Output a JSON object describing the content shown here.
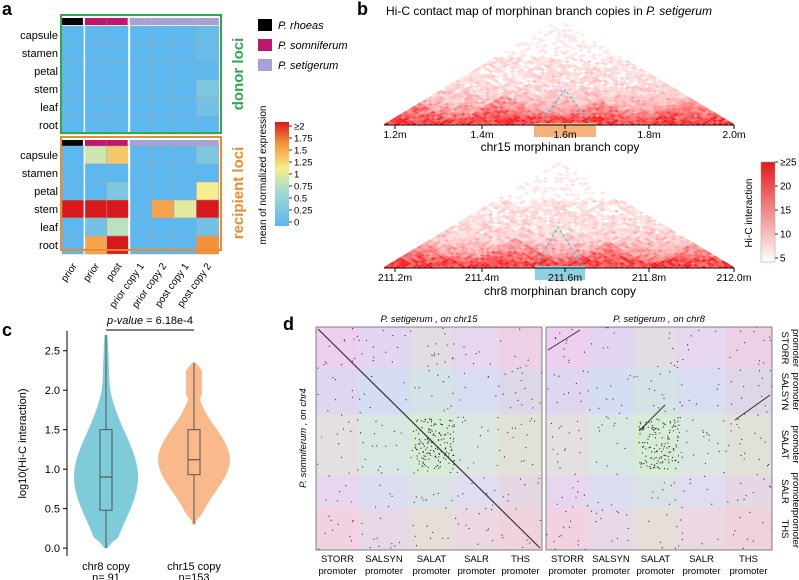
{
  "panels": {
    "a": "a",
    "b": "b",
    "c": "c",
    "d": "d"
  },
  "colors": {
    "p_rhoeas": "#000000",
    "p_somniferum": "#c0176e",
    "p_setigerum": "#a5a3d6",
    "donor_box": "#2fa84f",
    "recipient_box": "#f08a2c",
    "low": "#5cb8ee",
    "high": "#d7191c",
    "violin_chr8": "#7ecbd9",
    "violin_chr15": "#f9b98a",
    "hic": "#e31a1c"
  },
  "panel_a": {
    "legend": [
      {
        "label": "P. rhoeas",
        "color": "#000000"
      },
      {
        "label": "P. somniferum",
        "color": "#c0176e"
      },
      {
        "label": "P. setigerum",
        "color": "#a5a3d6"
      }
    ],
    "donor_label": "donor loci",
    "recipient_label": "recipient loci",
    "colorbar_title": "mean of normalized expression",
    "colorbar_ticks": [
      "≥2",
      "1.75",
      "1.5",
      "1.25",
      "1",
      "0.75",
      "0.5",
      "0.25",
      "0"
    ]
  },
  "panel_b": {
    "title_prefix": "Hi-C contact map of morphinan branch copies in ",
    "title_species": "P. setigerum",
    "top_ticks": [
      "1.2m",
      "1.4m",
      "1.6m",
      "1.8m",
      "2.0m"
    ],
    "top_label": "chr15 morphinan branch copy",
    "bottom_ticks": [
      "211.2m",
      "211.4m",
      "211.6m",
      "211.8m",
      "212.0m"
    ],
    "bottom_label": "chr8 morphinan branch copy",
    "colorbar_title": "Hi-C interaction",
    "colorbar_ticks": [
      "≥25",
      "20",
      "15",
      "10",
      "5"
    ]
  },
  "panel_c": {
    "pvalue_label": "p-value",
    "pvalue_text": " = 6.18e-4",
    "counts": [
      "n= 91",
      "n=153"
    ]
  },
  "panel_d": {
    "titles": [
      "P. setigerum , on chr15",
      "P. setigerum , on chr8"
    ],
    "ylabel": "P. somniferum , on chr4",
    "col_labels": [
      [
        "STORR",
        "promoter"
      ],
      [
        "SALSYN",
        "promoter"
      ],
      [
        "SALAT",
        "promoter"
      ],
      [
        "SALR",
        "promoter"
      ],
      [
        "THS",
        "promoter"
      ]
    ],
    "row_labels": [
      [
        "STORR",
        "promoter"
      ],
      [
        "SALSYN",
        "promoter"
      ],
      [
        "SALAT",
        "promoter"
      ],
      [
        "SALR",
        "promoter"
      ],
      [
        "THS",
        "promoter"
      ]
    ]
  },
  "chart_data": [
    {
      "type": "heatmap",
      "title": "donor loci",
      "columns": [
        "prior",
        "prior",
        "post",
        "prior copy 1",
        "prior copy 2",
        "post copy 1",
        "post copy 2"
      ],
      "column_species": [
        "P. rhoeas",
        "P. somniferum",
        "P. somniferum",
        "P. setigerum",
        "P. setigerum",
        "P. setigerum",
        "P. setigerum"
      ],
      "rows": [
        "capsule",
        "stamen",
        "petal",
        "stem",
        "leaf",
        "root"
      ],
      "values": [
        [
          0,
          0,
          0,
          0,
          0,
          0,
          0.1
        ],
        [
          0,
          0,
          0,
          0,
          0,
          0,
          0.1
        ],
        [
          0,
          0,
          0,
          0,
          0,
          0,
          0
        ],
        [
          0,
          0,
          0,
          0,
          0,
          0,
          0.3
        ],
        [
          0,
          0,
          0,
          0,
          0,
          0,
          0.2
        ],
        [
          0,
          0,
          0,
          0,
          0,
          0,
          0
        ]
      ],
      "color_range": [
        0,
        2
      ]
    },
    {
      "type": "heatmap",
      "title": "recipient loci",
      "columns": [
        "prior",
        "prior",
        "post",
        "prior copy 1",
        "prior copy 2",
        "post copy 1",
        "post copy 2"
      ],
      "column_species": [
        "P. rhoeas",
        "P. somniferum",
        "P. somniferum",
        "P. setigerum",
        "P. setigerum",
        "P. setigerum",
        "P. setigerum"
      ],
      "rows": [
        "capsule",
        "stamen",
        "petal",
        "stem",
        "leaf",
        "root"
      ],
      "values": [
        [
          0,
          0.9,
          1.3,
          0,
          0,
          0,
          0.3
        ],
        [
          0,
          0,
          0,
          0,
          0,
          0,
          0
        ],
        [
          0,
          0,
          0.3,
          0,
          0,
          0,
          1.1
        ],
        [
          2,
          2,
          2,
          0,
          1.5,
          1,
          2
        ],
        [
          0,
          0.2,
          0.8,
          0,
          0,
          0,
          0.2
        ],
        [
          0,
          1.5,
          2,
          0,
          0,
          0,
          1.6
        ]
      ],
      "color_range": [
        0,
        2
      ]
    },
    {
      "type": "violin",
      "title": "",
      "xlabel": "",
      "ylabel": "log10(Hi-C interaction)",
      "categories": [
        "chr8 copy",
        "chr15 copy"
      ],
      "series": [
        {
          "name": "chr8 copy",
          "min": 0.0,
          "q1": 0.48,
          "median": 0.9,
          "q3": 1.5,
          "max": 2.7,
          "n": 91,
          "color": "#7ecbd9"
        },
        {
          "name": "chr15 copy",
          "min": 0.3,
          "q1": 0.93,
          "median": 1.12,
          "q3": 1.5,
          "max": 2.35,
          "n": 153,
          "color": "#f9b98a"
        }
      ],
      "ylim": [
        -0.1,
        2.75
      ],
      "yticks": [
        "0.0",
        "0.5",
        "1.0",
        "1.5",
        "2.0",
        "2.5"
      ]
    }
  ]
}
